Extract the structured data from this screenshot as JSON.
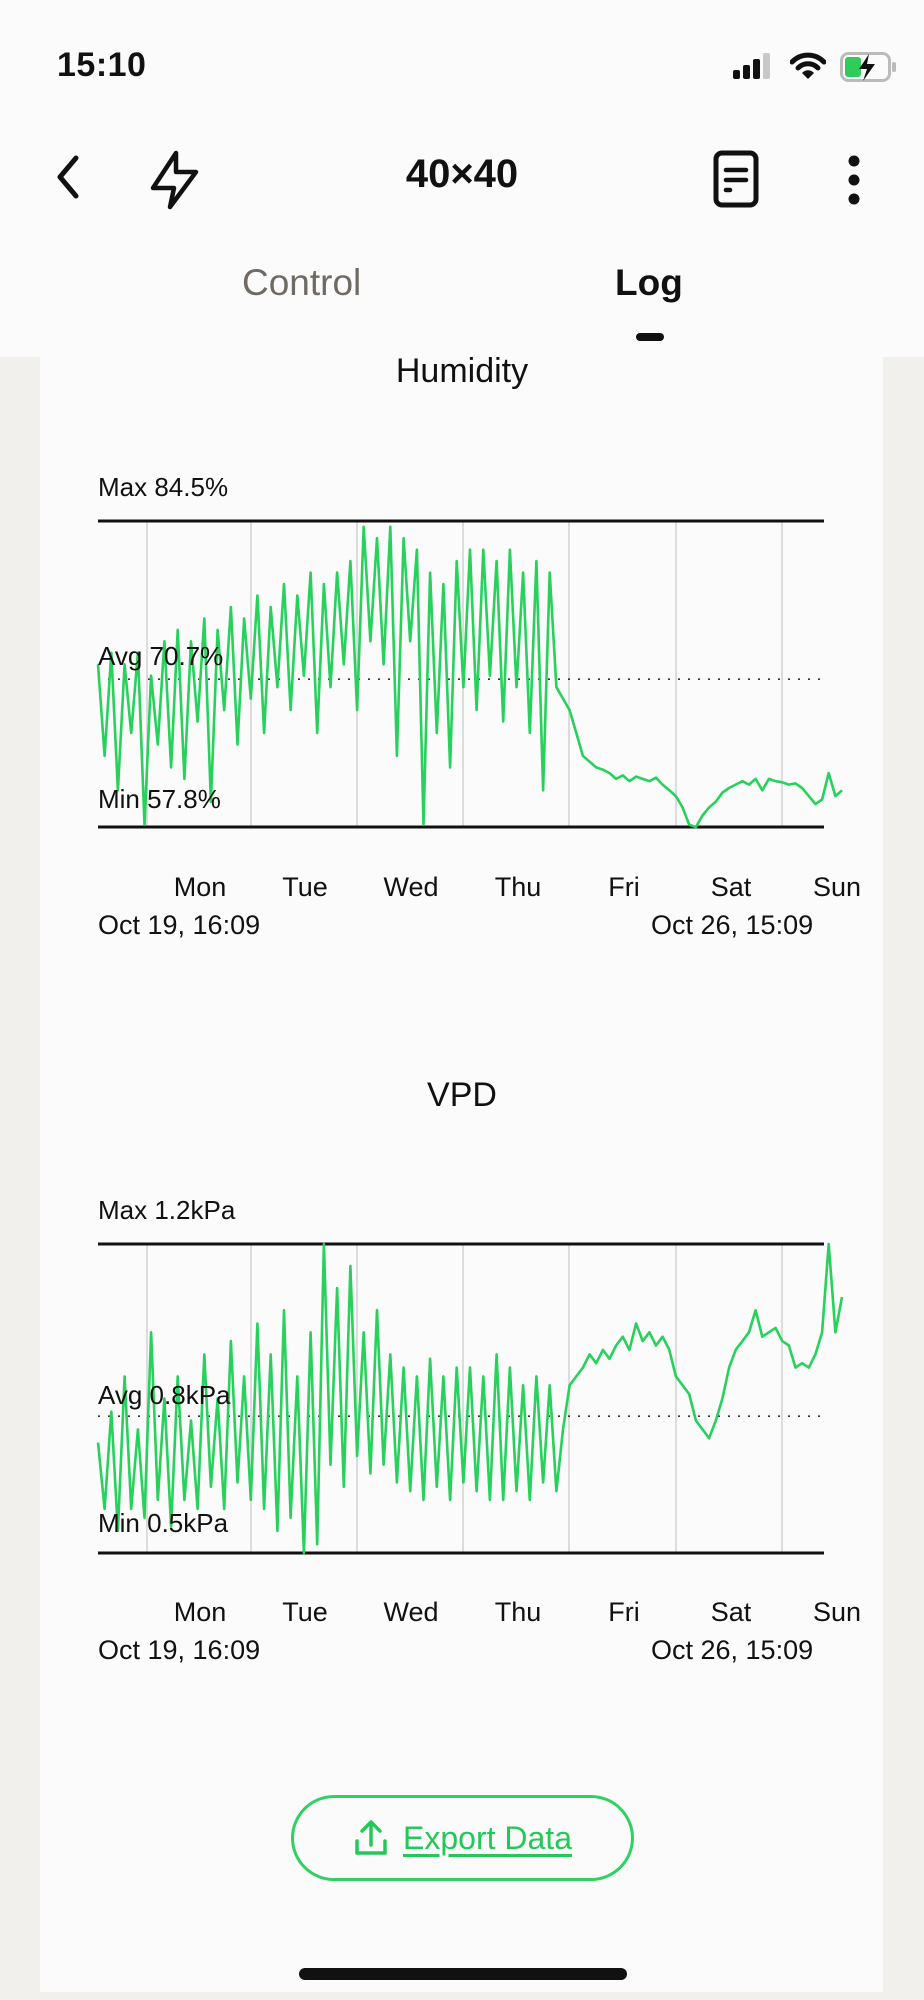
{
  "status_bar": {
    "time": "15:10"
  },
  "header": {
    "title": "40×40"
  },
  "tabs": [
    {
      "label": "Control",
      "active": false
    },
    {
      "label": "Log",
      "active": true
    }
  ],
  "colors": {
    "accent": "#27d15c",
    "text": "#111111",
    "inactive_tab": "#6f6a63"
  },
  "export_button": {
    "label": "Export Data",
    "icon": "upload-icon"
  },
  "chart_data": [
    {
      "type": "line",
      "title": "Humidity",
      "max_label": "Max 84.5%",
      "avg_label": "Avg 70.7%",
      "min_label": "Min 57.8%",
      "ylim": [
        57.8,
        84.5
      ],
      "avg": 70.7,
      "x_tick_labels": [
        "Mon",
        "Tue",
        "Wed",
        "Thu",
        "Fri",
        "Sat",
        "Sun"
      ],
      "start_label": "Oct 19, 16:09",
      "end_label": "Oct 26, 15:09",
      "values": [
        72,
        64,
        73,
        61,
        72,
        66,
        73,
        58,
        71,
        65,
        74,
        63,
        75,
        62,
        74,
        67,
        76,
        60,
        75,
        68,
        77,
        65,
        76,
        69,
        78,
        66,
        77,
        70,
        79,
        68,
        78,
        71,
        80,
        66,
        79,
        70,
        80,
        72,
        81,
        68,
        84,
        74,
        83,
        72,
        84,
        64,
        83,
        74,
        82,
        58,
        80,
        66,
        79,
        63,
        81,
        70,
        82,
        68,
        82,
        71,
        81,
        67,
        82,
        70,
        80,
        66,
        81,
        61,
        80,
        70,
        69,
        68,
        66,
        64,
        63.5,
        63,
        62.8,
        62.5,
        62,
        62.3,
        61.8,
        62.2,
        62,
        61.8,
        62.1,
        61.5,
        61,
        60.5,
        59.5,
        58,
        57.8,
        58.8,
        59.5,
        60,
        60.8,
        61.2,
        61.5,
        61.8,
        61.5,
        62,
        61,
        62,
        61.8,
        61.7,
        61.5,
        61.6,
        61.2,
        60.5,
        59.8,
        60.2,
        62.5,
        60.5,
        61
      ]
    },
    {
      "type": "line",
      "title": "VPD",
      "max_label": "Max 1.2kPa",
      "avg_label": "Avg 0.8kPa",
      "min_label": "Min 0.5kPa",
      "ylim": [
        0.5,
        1.2
      ],
      "avg": 0.81,
      "x_tick_labels": [
        "Mon",
        "Tue",
        "Wed",
        "Thu",
        "Fri",
        "Sat",
        "Sun"
      ],
      "start_label": "Oct 19, 16:09",
      "end_label": "Oct 26, 15:09",
      "values": [
        0.75,
        0.6,
        0.82,
        0.55,
        0.9,
        0.6,
        0.78,
        0.58,
        1.0,
        0.62,
        0.85,
        0.56,
        0.9,
        0.62,
        0.8,
        0.6,
        0.95,
        0.65,
        0.85,
        0.6,
        0.98,
        0.66,
        0.9,
        0.62,
        1.02,
        0.6,
        0.95,
        0.55,
        1.05,
        0.58,
        0.9,
        0.5,
        1.0,
        0.52,
        1.2,
        0.7,
        1.1,
        0.65,
        1.15,
        0.72,
        1.0,
        0.68,
        1.05,
        0.7,
        0.95,
        0.66,
        0.92,
        0.64,
        0.9,
        0.62,
        0.94,
        0.65,
        0.9,
        0.62,
        0.92,
        0.66,
        0.92,
        0.64,
        0.9,
        0.62,
        0.95,
        0.62,
        0.92,
        0.64,
        0.88,
        0.62,
        0.9,
        0.66,
        0.88,
        0.64,
        0.78,
        0.88,
        0.9,
        0.92,
        0.95,
        0.93,
        0.96,
        0.94,
        0.97,
        0.99,
        0.96,
        1.02,
        0.98,
        1.0,
        0.97,
        0.99,
        0.96,
        0.9,
        0.88,
        0.86,
        0.8,
        0.78,
        0.76,
        0.8,
        0.85,
        0.92,
        0.96,
        0.98,
        1.0,
        1.05,
        0.99,
        1.0,
        1.01,
        0.98,
        0.97,
        0.92,
        0.93,
        0.92,
        0.95,
        1.0,
        1.2,
        1.0,
        1.08
      ]
    }
  ]
}
